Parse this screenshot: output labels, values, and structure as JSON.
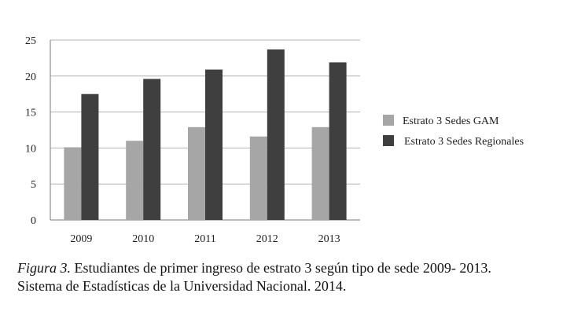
{
  "chart_data": {
    "type": "bar",
    "categories": [
      "2009",
      "2010",
      "2011",
      "2012",
      "2013"
    ],
    "series": [
      {
        "name": "Estrato 3 Sedes GAM",
        "values": [
          10.1,
          11.0,
          12.9,
          11.6,
          12.9
        ],
        "color": "#a6a6a6"
      },
      {
        "name": "Estrato 3 Sedes Regionales",
        "values": [
          17.5,
          19.6,
          20.9,
          23.7,
          21.9
        ],
        "color": "#3f3f3f"
      }
    ],
    "ylim": [
      0,
      25
    ],
    "yticks": [
      "0",
      "5",
      "10",
      "15",
      "20",
      "25"
    ],
    "grid": true,
    "legend_position": "right"
  },
  "caption": {
    "figure_label": "Figura 3.",
    "line1": " Estudiantes de primer ingreso de estrato 3 según tipo de sede 2009- 2013.",
    "line2": "Sistema de Estadísticas de la Universidad Nacional. 2014."
  }
}
